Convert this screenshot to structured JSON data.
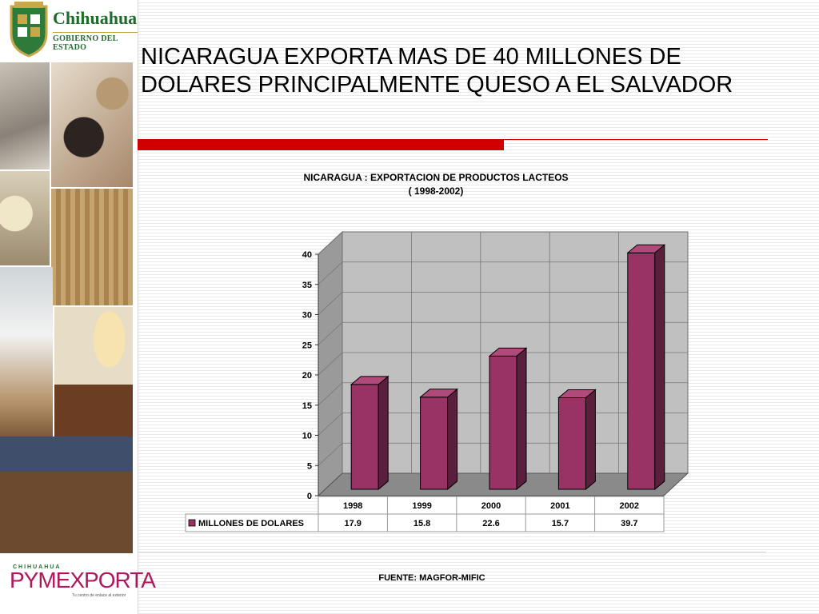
{
  "header": {
    "logo_name": "Chihuahua",
    "logo_subtitle": "GOBIERNO DEL ESTADO"
  },
  "footer_logo": {
    "top": "CHIHUAHUA",
    "main": "PYMEXPORTA",
    "tagline": "Tu centro de enlace al exterior"
  },
  "slide": {
    "title": "NICARAGUA EXPORTA MAS DE 40 MILLONES DE DOLARES PRINCIPALMENTE QUESO A EL SALVADOR",
    "source": "FUENTE: MAGFOR-MIFIC"
  },
  "colors": {
    "accent_red": "#d00000",
    "bar": "#993366",
    "bar_side": "#5a1f3c",
    "bar_top": "#b04a7a",
    "wall": "#c0c0c0"
  },
  "chart_data": {
    "type": "bar",
    "title": "NICARAGUA : EXPORTACION DE PRODUCTOS LACTEOS",
    "subtitle": "( 1998-2002)",
    "categories": [
      "1998",
      "1999",
      "2000",
      "2001",
      "2002"
    ],
    "series": [
      {
        "name": "MILLONES DE DOLARES",
        "values": [
          17.9,
          15.8,
          22.6,
          15.7,
          39.7
        ],
        "labels": [
          "17.9",
          "15.8",
          "22.6",
          "15.7",
          "39.7"
        ]
      }
    ],
    "y_ticks": [
      "0",
      "5",
      "10",
      "15",
      "20",
      "25",
      "30",
      "35",
      "40"
    ],
    "ylim": [
      0,
      40
    ],
    "grid": true,
    "three_d": true,
    "data_table": true
  }
}
